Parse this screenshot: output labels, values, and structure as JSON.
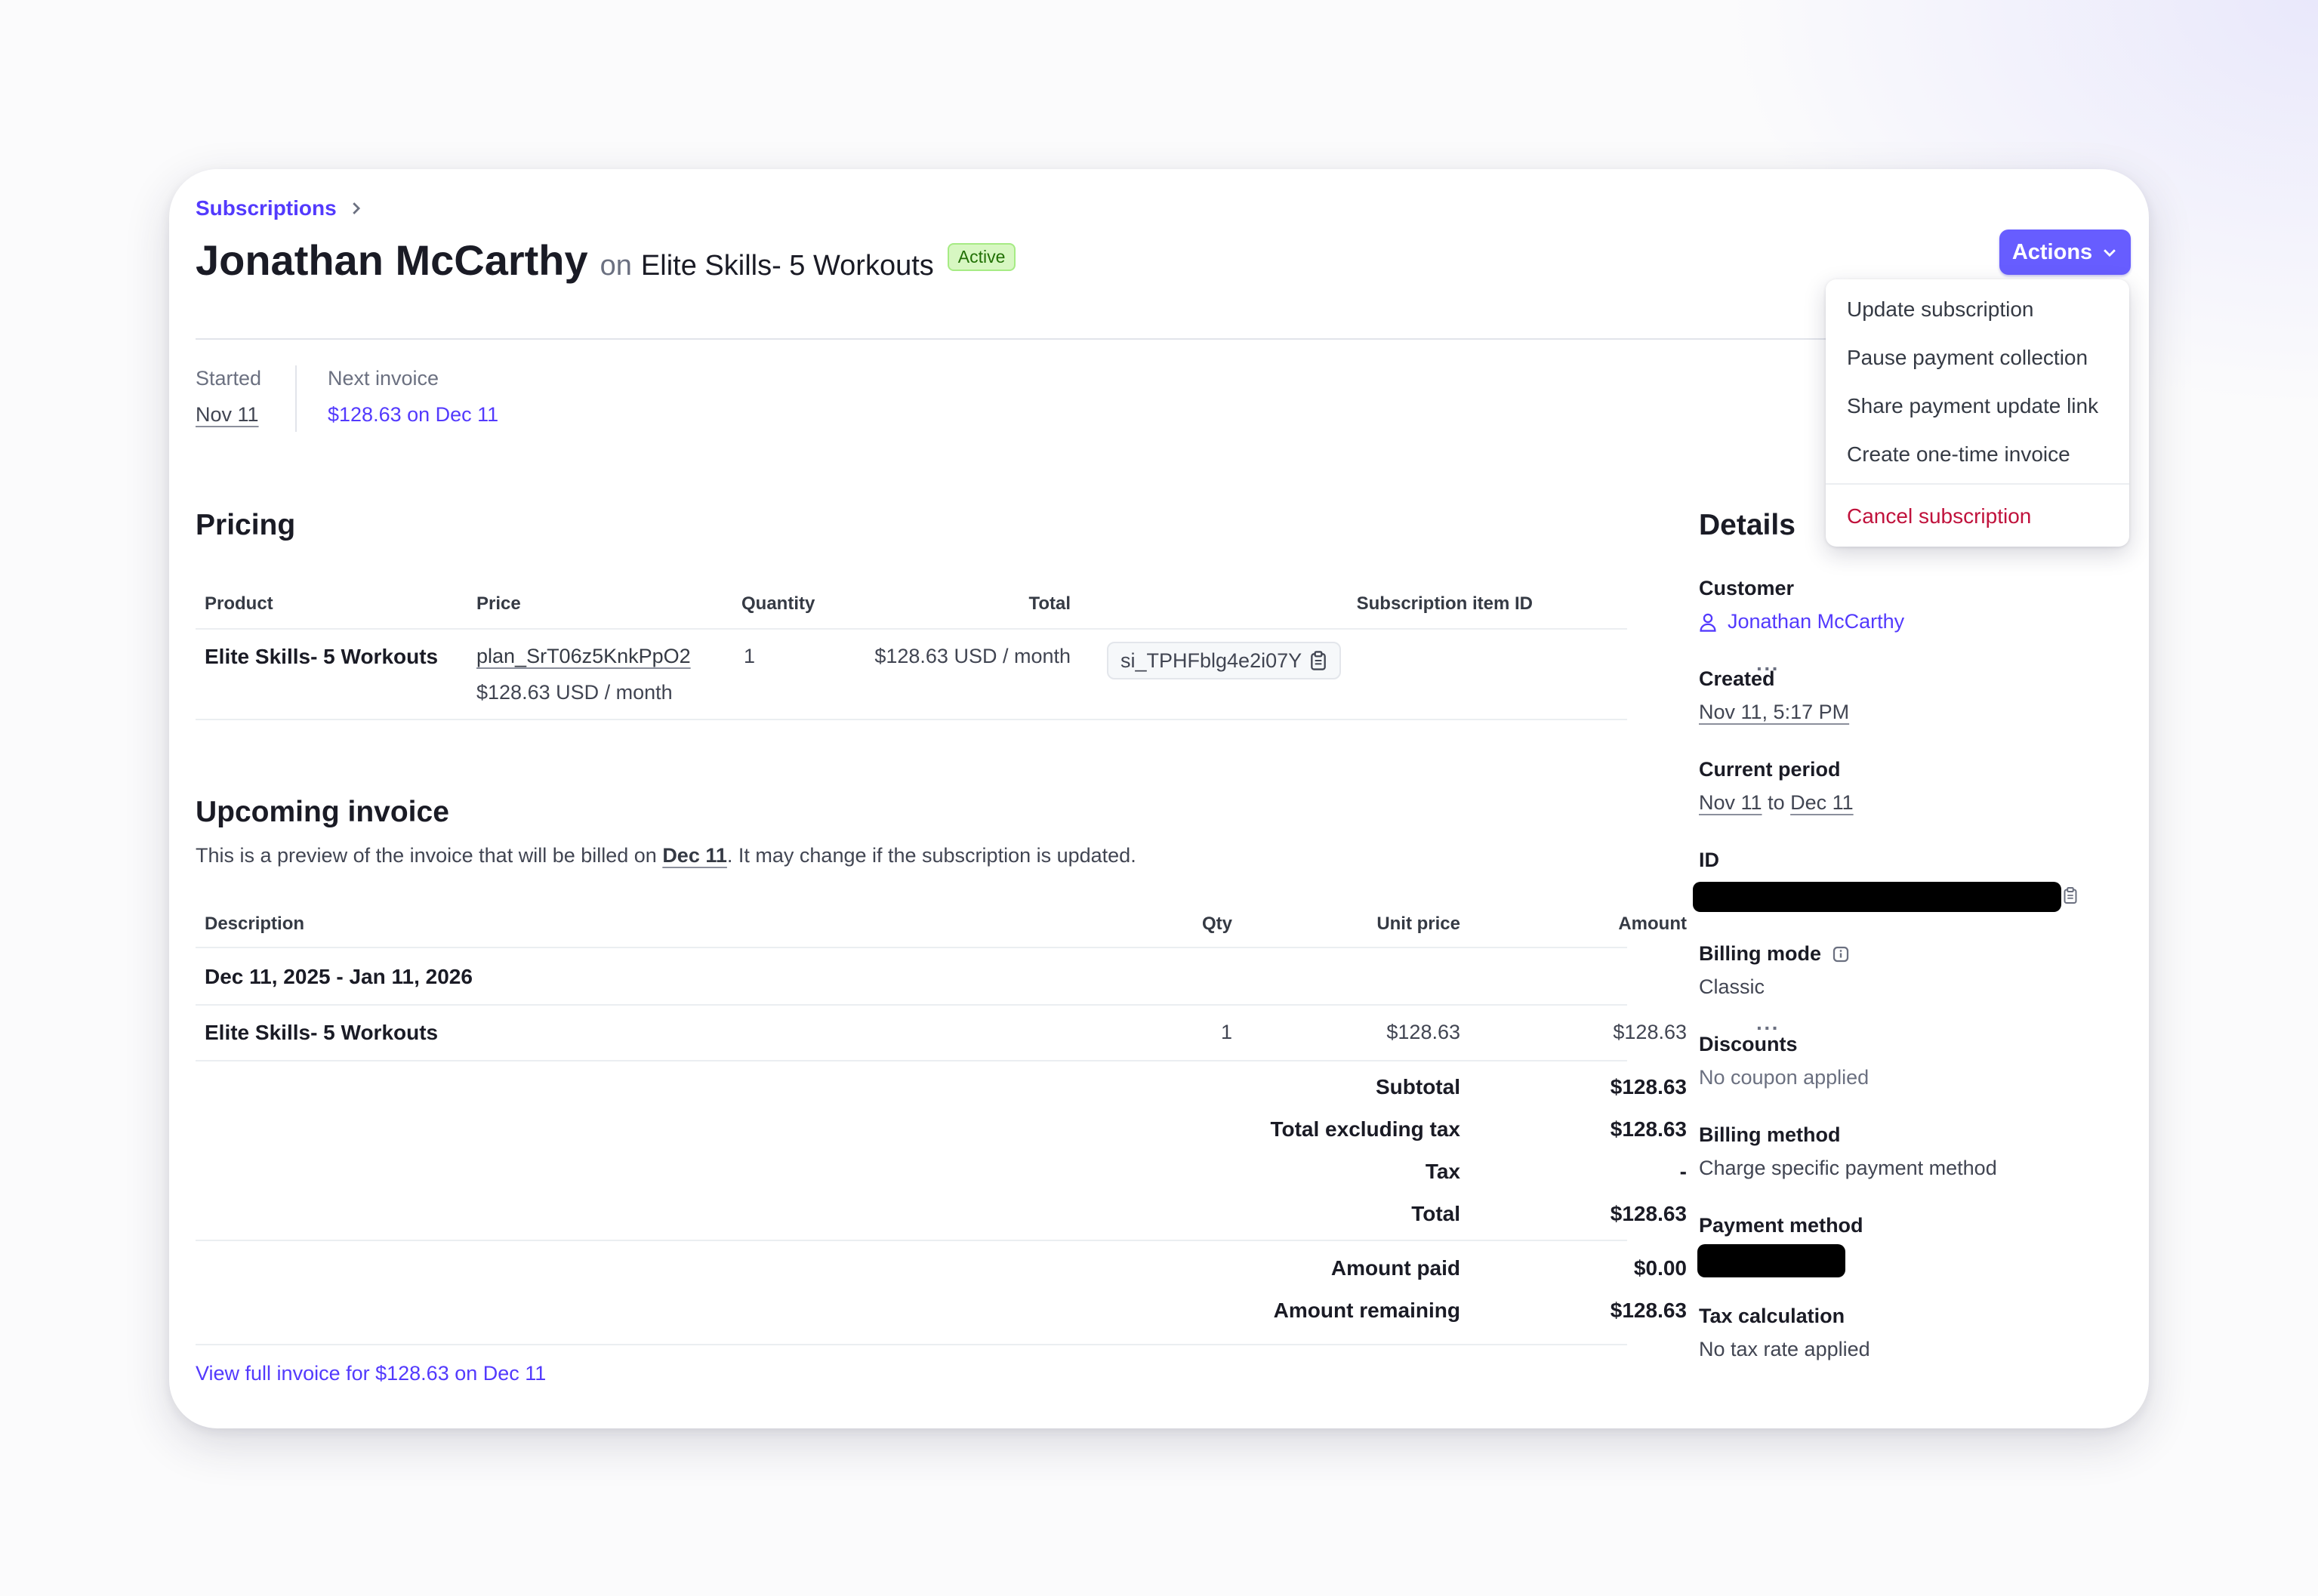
{
  "breadcrumb": {
    "label": "Subscriptions"
  },
  "header": {
    "customer_name": "Jonathan McCarthy",
    "on": "on",
    "product": "Elite Skills- 5 Workouts",
    "status": "Active"
  },
  "actions": {
    "label": "Actions",
    "menu": [
      "Update subscription",
      "Pause payment collection",
      "Share payment update link",
      "Create one-time invoice"
    ],
    "danger_item": "Cancel subscription"
  },
  "summary": {
    "started_label": "Started",
    "started_value": "Nov 11",
    "next_invoice_label": "Next invoice",
    "next_invoice_value": "$128.63 on Dec 11"
  },
  "pricing": {
    "heading": "Pricing",
    "columns": [
      "Product",
      "Price",
      "Quantity",
      "Total",
      "Subscription item ID"
    ],
    "row": {
      "product": "Elite Skills- 5 Workouts",
      "price_id": "plan_SrT06z5KnkPpO2",
      "price_detail": "$128.63 USD / month",
      "quantity": "1",
      "total": "$128.63 USD / month",
      "item_id": "si_TPHFblg4e2i07Y",
      "more": "···"
    }
  },
  "upcoming": {
    "heading": "Upcoming invoice",
    "desc_prefix": "This is a preview of the invoice that will be billed on ",
    "desc_date": "Dec 11",
    "desc_suffix": ". It may change if the subscription is updated.",
    "columns": [
      "Description",
      "Qty",
      "Unit price",
      "Amount"
    ],
    "period": "Dec 11, 2025 - Jan 11, 2026",
    "line": {
      "description": "Elite Skills- 5 Workouts",
      "qty": "1",
      "unit_price": "$128.63",
      "amount": "$128.63",
      "more": "···"
    },
    "totals": [
      {
        "label": "Subtotal",
        "value": "$128.63"
      },
      {
        "label": "Total excluding tax",
        "value": "$128.63"
      },
      {
        "label": "Tax",
        "value": "-"
      },
      {
        "label": "Total",
        "value": "$128.63"
      }
    ],
    "payments": [
      {
        "label": "Amount paid",
        "value": "$0.00"
      },
      {
        "label": "Amount remaining",
        "value": "$128.63"
      }
    ],
    "view_link": "View full invoice for $128.63 on Dec 11"
  },
  "details": {
    "heading": "Details",
    "customer_label": "Customer",
    "customer_value": "Jonathan McCarthy",
    "created_label": "Created",
    "created_value": "Nov 11, 5:17 PM",
    "period_label": "Current period",
    "period_start": "Nov 11",
    "period_to": "to",
    "period_end": "Dec 11",
    "id_label": "ID",
    "billing_mode_label": "Billing mode",
    "billing_mode_value": "Classic",
    "discounts_label": "Discounts",
    "discounts_value": "No coupon applied",
    "billing_method_label": "Billing method",
    "billing_method_value": "Charge specific payment method",
    "payment_method_label": "Payment method",
    "tax_label": "Tax calculation",
    "tax_value": "No tax rate applied"
  },
  "colors": {
    "accent": "#533afd",
    "button": "#675dff",
    "danger": "#c0123c",
    "active_bg": "#d7f7c2"
  }
}
